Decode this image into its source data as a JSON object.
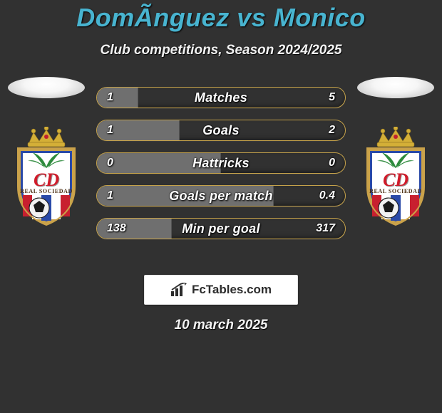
{
  "title": {
    "player1": "DomÃ­nguez",
    "vs": "vs",
    "player2": "Monico",
    "color": "#48b4d0"
  },
  "subtitle": "Club competitions, Season 2024/2025",
  "crest": {
    "letters": "CD",
    "name": "REAL SOCIEDAD",
    "shield_border": "#caa24a",
    "shield_inner_border": "#2a4aa8",
    "crown_fill": "#d4af37",
    "crown_jewel": "#c02030",
    "stripes_red": "#c8202f",
    "stripes_blue": "#2a4aa8",
    "stripes_white": "#ffffff",
    "palm_green": "#2e8b3d",
    "ball_dark": "#1a1a1a",
    "ball_light": "#f2f2f2"
  },
  "avatar": {
    "bg": "#e9e9e9"
  },
  "bars": {
    "accent_color": "#c5a24a",
    "fill_left_color": "#6f6f6f",
    "fill_right_color": "#313131",
    "label_color": "#ffffff",
    "rows": [
      {
        "label": "Matches",
        "left": "1",
        "right": "5",
        "left_pct": 16.7
      },
      {
        "label": "Goals",
        "left": "1",
        "right": "2",
        "left_pct": 33.3
      },
      {
        "label": "Hattricks",
        "left": "0",
        "right": "0",
        "left_pct": 50.0
      },
      {
        "label": "Goals per match",
        "left": "1",
        "right": "0.4",
        "left_pct": 71.4
      },
      {
        "label": "Min per goal",
        "left": "138",
        "right": "317",
        "left_pct": 30.3
      }
    ]
  },
  "watermark": {
    "text_prefix": "FcTables",
    "text_suffix": ".com"
  },
  "date": "10 march 2025",
  "colors": {
    "background": "#313131",
    "text": "#f2f2f2"
  }
}
